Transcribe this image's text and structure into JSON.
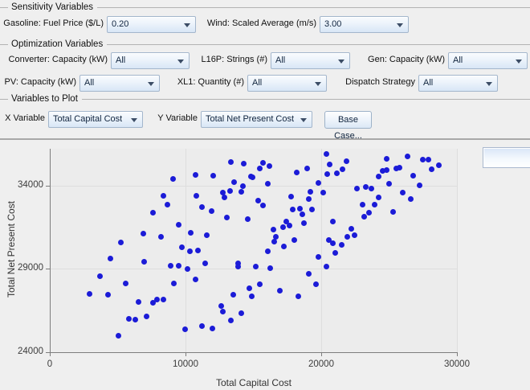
{
  "sensitivity": {
    "title": "Sensitivity Variables",
    "fields": [
      {
        "label": "Gasoline: Fuel Price ($/L)",
        "value": "0.20"
      },
      {
        "label": "Wind: Scaled Average (m/s)",
        "value": "3.00"
      }
    ]
  },
  "optimization": {
    "title": "Optimization Variables",
    "rows": [
      [
        {
          "label": "Converter: Capacity (kW)",
          "value": "All"
        },
        {
          "label": "L16P: Strings (#)",
          "value": "All"
        },
        {
          "label": "Gen: Capacity (kW)",
          "value": "All"
        }
      ],
      [
        {
          "label": "PV: Capacity (kW)",
          "value": "All"
        },
        {
          "label": "XL1: Quantity (#)",
          "value": "All"
        },
        {
          "label": "Dispatch Strategy",
          "value": "All"
        }
      ]
    ]
  },
  "plot_controls": {
    "title": "Variables to Plot",
    "x_label": "X Variable",
    "x_value": "Total Capital Cost",
    "y_label": "Y Variable",
    "y_value": "Total Net Present Cost",
    "base_case_label": "Base Case..."
  },
  "icons": {
    "combo_arrow": "chevron-down-icon"
  },
  "colors": {
    "point": "#1b1bd7",
    "combo_border": "#a3b6cc",
    "grid": "#dedede",
    "axis": "#7d7d7d"
  },
  "chart_data": {
    "type": "scatter",
    "title": "",
    "xlabel": "Total Capital Cost",
    "ylabel": "Total Net Present Cost",
    "xlim": [
      0,
      30000
    ],
    "ylim": [
      24000,
      36200
    ],
    "x_ticks": [
      0,
      10000,
      20000,
      30000
    ],
    "y_ticks": [
      24000,
      29000,
      34000
    ],
    "grid": true,
    "legend": "none",
    "point_color": "#1b1bd7",
    "points": [
      [
        9080,
        34370
      ],
      [
        10730,
        34640
      ],
      [
        8350,
        33360
      ],
      [
        10770,
        33370
      ],
      [
        8680,
        32830
      ],
      [
        11200,
        32710
      ],
      [
        7600,
        32360
      ],
      [
        9490,
        31620
      ],
      [
        10380,
        31140
      ],
      [
        11580,
        31000
      ],
      [
        6870,
        31110
      ],
      [
        8170,
        30930
      ],
      [
        5260,
        30560
      ],
      [
        9730,
        30270
      ],
      [
        10300,
        30050
      ],
      [
        10910,
        30100
      ],
      [
        13370,
        35400
      ],
      [
        14310,
        35290
      ],
      [
        12030,
        34580
      ],
      [
        15460,
        35000
      ],
      [
        15730,
        35350
      ],
      [
        16180,
        35170
      ],
      [
        14810,
        34560
      ],
      [
        14960,
        34470
      ],
      [
        13570,
        34220
      ],
      [
        14220,
        33980
      ],
      [
        13310,
        33680
      ],
      [
        12780,
        33560
      ],
      [
        12880,
        33270
      ],
      [
        14100,
        33600
      ],
      [
        16050,
        34090
      ],
      [
        15380,
        33080
      ],
      [
        15710,
        32790
      ],
      [
        11930,
        32470
      ],
      [
        13070,
        32070
      ],
      [
        14610,
        31960
      ],
      [
        18190,
        34770
      ],
      [
        18940,
        35030
      ],
      [
        20360,
        35900
      ],
      [
        20600,
        35250
      ],
      [
        20440,
        34690
      ],
      [
        21150,
        34720
      ],
      [
        21580,
        34980
      ],
      [
        21860,
        35430
      ],
      [
        19790,
        34160
      ],
      [
        22660,
        33820
      ],
      [
        23270,
        33900
      ],
      [
        23670,
        33810
      ],
      [
        19200,
        33630
      ],
      [
        20120,
        33580
      ],
      [
        19080,
        33210
      ],
      [
        17800,
        33310
      ],
      [
        17910,
        32550
      ],
      [
        18450,
        32630
      ],
      [
        19300,
        32550
      ],
      [
        18590,
        32280
      ],
      [
        23020,
        32840
      ],
      [
        23170,
        32120
      ],
      [
        17430,
        31860
      ],
      [
        17640,
        31590
      ],
      [
        17190,
        31480
      ],
      [
        18740,
        31720
      ],
      [
        20830,
        31820
      ],
      [
        16480,
        31330
      ],
      [
        16670,
        30910
      ],
      [
        16540,
        30630
      ],
      [
        22190,
        31400
      ],
      [
        21910,
        30920
      ],
      [
        20540,
        30740
      ],
      [
        20870,
        30510
      ],
      [
        21520,
        30420
      ],
      [
        18030,
        30740
      ],
      [
        17270,
        30320
      ],
      [
        16070,
        30050
      ],
      [
        24850,
        35580
      ],
      [
        26360,
        35740
      ],
      [
        27510,
        35530
      ],
      [
        27900,
        35560
      ],
      [
        28670,
        35190
      ],
      [
        28120,
        34970
      ],
      [
        24500,
        34870
      ],
      [
        24850,
        34920
      ],
      [
        25530,
        35000
      ],
      [
        25770,
        35080
      ],
      [
        24220,
        34560
      ],
      [
        26780,
        34590
      ],
      [
        25000,
        34080
      ],
      [
        27250,
        34030
      ],
      [
        26030,
        33580
      ],
      [
        24240,
        33260
      ],
      [
        26620,
        33190
      ],
      [
        23960,
        32840
      ],
      [
        23530,
        32390
      ],
      [
        25280,
        32420
      ],
      [
        22450,
        31030
      ],
      [
        4470,
        29630
      ],
      [
        6970,
        29410
      ],
      [
        8920,
        29180
      ],
      [
        9470,
        29200
      ],
      [
        10160,
        28990
      ],
      [
        11460,
        29340
      ],
      [
        3720,
        28550
      ],
      [
        5590,
        28120
      ],
      [
        10730,
        28350
      ],
      [
        9140,
        28110
      ],
      [
        2940,
        27490
      ],
      [
        4290,
        27460
      ],
      [
        6540,
        27010
      ],
      [
        7620,
        26960
      ],
      [
        7870,
        27170
      ],
      [
        8390,
        27140
      ],
      [
        5830,
        26010
      ],
      [
        6320,
        25970
      ],
      [
        7150,
        26160
      ],
      [
        9980,
        25390
      ],
      [
        11240,
        25570
      ],
      [
        5040,
        24990
      ],
      [
        21010,
        29950
      ],
      [
        19790,
        29710
      ],
      [
        13860,
        29340
      ],
      [
        13900,
        29130
      ],
      [
        15180,
        29150
      ],
      [
        16240,
        29030
      ],
      [
        20360,
        29130
      ],
      [
        19080,
        28710
      ],
      [
        15460,
        28060
      ],
      [
        19610,
        28090
      ],
      [
        14690,
        27820
      ],
      [
        16950,
        27690
      ],
      [
        14900,
        27360
      ],
      [
        13540,
        27430
      ],
      [
        18310,
        27330
      ],
      [
        12640,
        26760
      ],
      [
        12780,
        26430
      ],
      [
        14120,
        26350
      ],
      [
        13350,
        25920
      ],
      [
        11990,
        25440
      ]
    ]
  }
}
